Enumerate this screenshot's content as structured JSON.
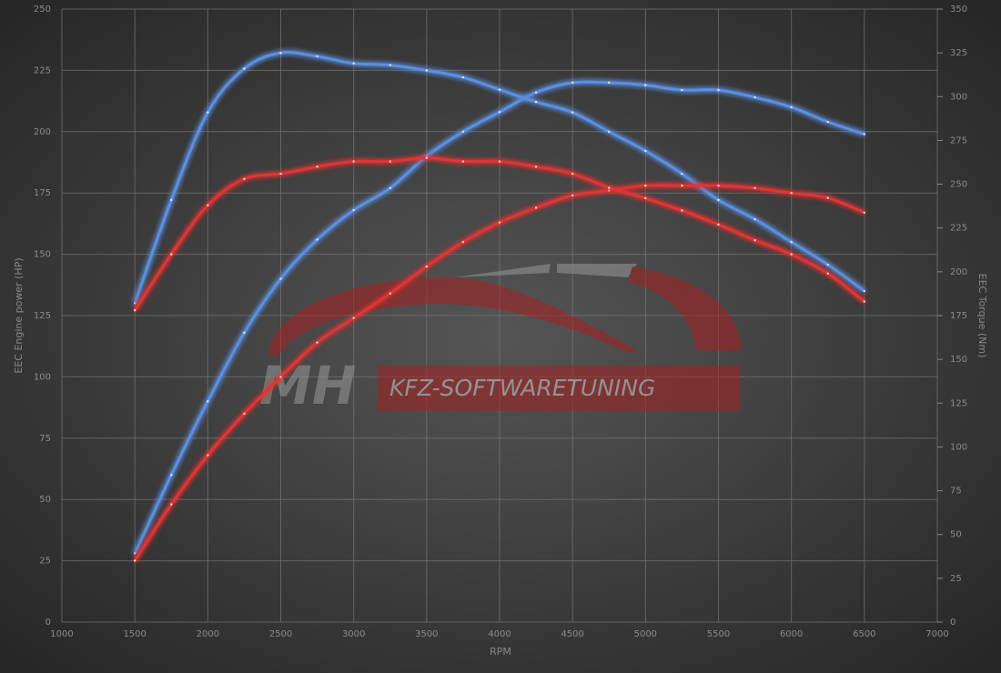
{
  "chart_data": {
    "type": "line",
    "x_label": "RPM",
    "y_label": "EEC Engine power (HP)",
    "y2_label": "EEC Torque (Nm)",
    "watermark": [
      "MH",
      "KFZ-SOFTWARETUNING"
    ],
    "x": [
      1500,
      1750,
      2000,
      2250,
      2500,
      2750,
      3000,
      3250,
      3500,
      3750,
      4000,
      4250,
      4500,
      4750,
      5000,
      5250,
      5500,
      5750,
      6000,
      6250,
      6500
    ],
    "series": [
      {
        "color": "#5b8fe0",
        "axis": "y",
        "values": [
          28,
          60,
          90,
          118,
          140,
          156,
          168,
          177,
          190,
          200,
          208,
          216,
          220,
          220,
          219,
          217,
          217,
          214,
          210,
          204,
          199
        ]
      },
      {
        "color": "#5b8fe0",
        "axis": "y2",
        "values": [
          182,
          241,
          291,
          316,
          325,
          323,
          319,
          318,
          315,
          311,
          304,
          297,
          291,
          280,
          269,
          256,
          241,
          230,
          217,
          204,
          189
        ]
      },
      {
        "color": "#e03535",
        "axis": "y",
        "values": [
          25,
          48,
          68,
          85,
          100,
          114,
          124,
          134,
          145,
          155,
          163,
          169,
          174,
          176,
          178,
          178,
          178,
          177,
          175,
          173,
          167
        ]
      },
      {
        "color": "#e03535",
        "axis": "y2",
        "values": [
          178,
          210,
          238,
          253,
          256,
          260,
          263,
          263,
          265,
          263,
          263,
          260,
          256,
          248,
          242,
          235,
          227,
          218,
          210,
          199,
          183
        ]
      }
    ],
    "xlim": [
      1000,
      7000
    ],
    "xticks": [
      1000,
      1500,
      2000,
      2500,
      3000,
      3500,
      4000,
      4500,
      5000,
      5500,
      6000,
      6500,
      7000
    ],
    "ylim": [
      0,
      250
    ],
    "yticks": [
      0,
      25,
      50,
      75,
      100,
      125,
      150,
      175,
      200,
      225,
      250
    ],
    "y2lim": [
      0,
      350
    ],
    "y2ticks": [
      0,
      25,
      50,
      75,
      100,
      125,
      150,
      175,
      200,
      225,
      250,
      275,
      300,
      325,
      350
    ],
    "grid": true
  }
}
